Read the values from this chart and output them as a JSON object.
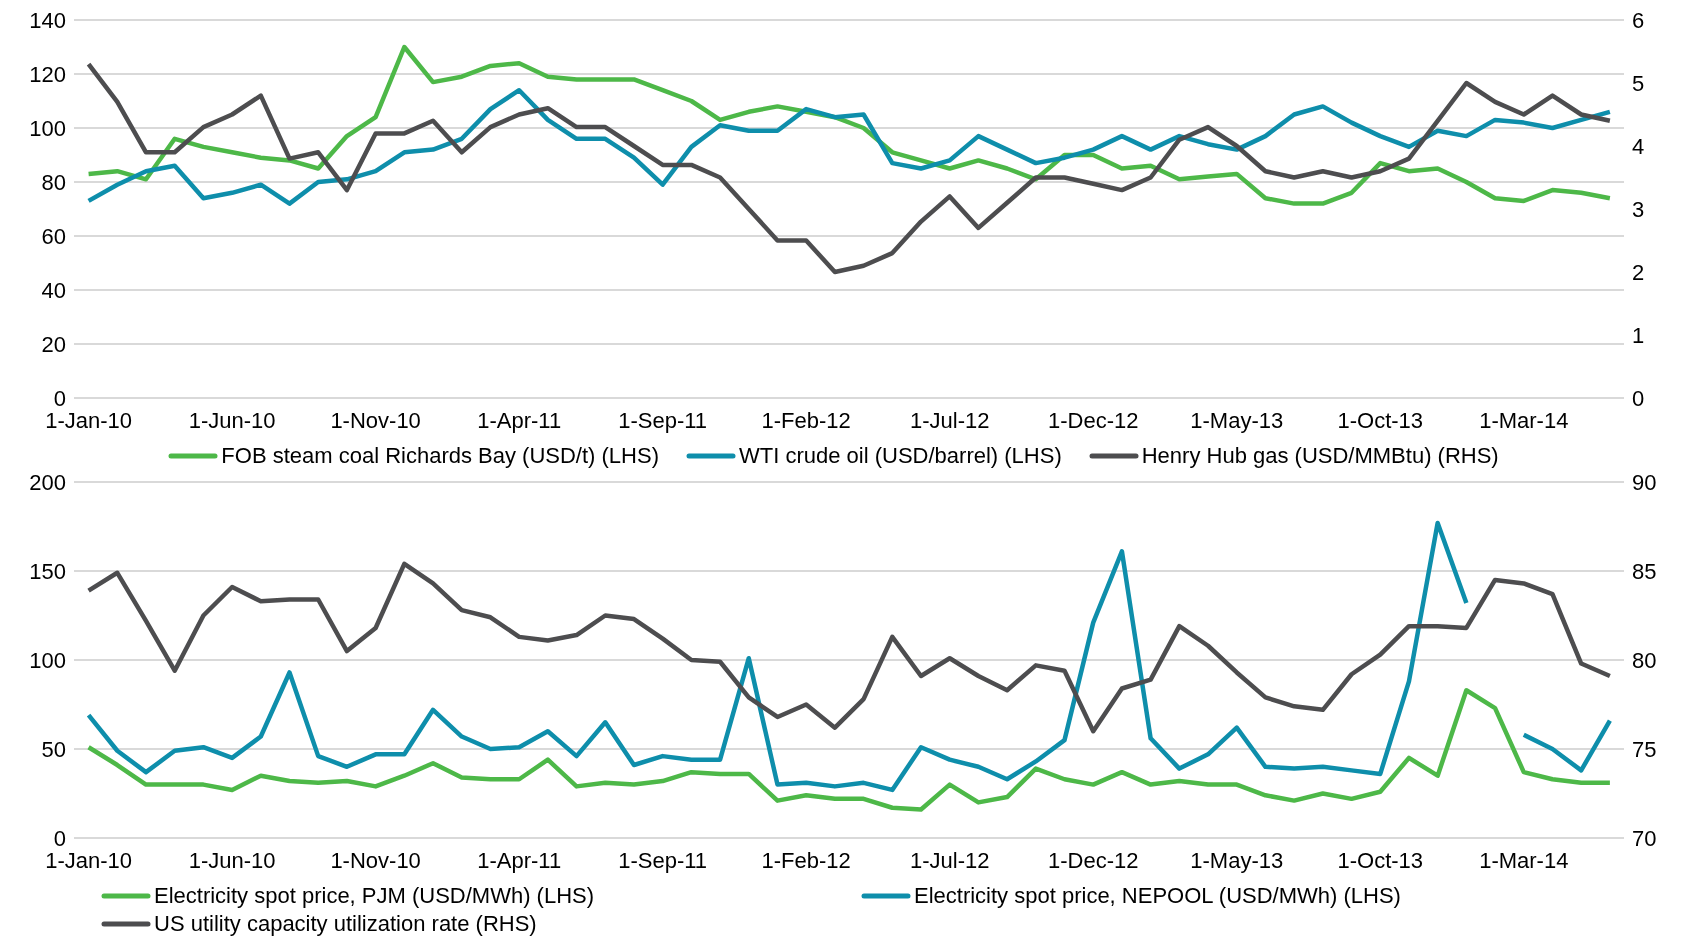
{
  "chart_data": [
    {
      "type": "line",
      "x": [
        "2010-01",
        "2010-02",
        "2010-03",
        "2010-04",
        "2010-05",
        "2010-06",
        "2010-07",
        "2010-08",
        "2010-09",
        "2010-10",
        "2010-11",
        "2010-12",
        "2011-01",
        "2011-02",
        "2011-03",
        "2011-04",
        "2011-05",
        "2011-06",
        "2011-07",
        "2011-08",
        "2011-09",
        "2011-10",
        "2011-11",
        "2011-12",
        "2012-01",
        "2012-02",
        "2012-03",
        "2012-04",
        "2012-05",
        "2012-06",
        "2012-07",
        "2012-08",
        "2012-09",
        "2012-10",
        "2012-11",
        "2012-12",
        "2013-01",
        "2013-02",
        "2013-03",
        "2013-04",
        "2013-05",
        "2013-06",
        "2013-07",
        "2013-08",
        "2013-09",
        "2013-10",
        "2013-11",
        "2013-12",
        "2014-01",
        "2014-02",
        "2014-03",
        "2014-04",
        "2014-05",
        "2014-06"
      ],
      "xlim": [
        "2009-12-16",
        "2014-06-16"
      ],
      "xticks": [
        {
          "value": "2010-01",
          "label": "1-Jan-10"
        },
        {
          "value": "2010-06",
          "label": "1-Jun-10"
        },
        {
          "value": "2010-11",
          "label": "1-Nov-10"
        },
        {
          "value": "2011-04",
          "label": "1-Apr-11"
        },
        {
          "value": "2011-09",
          "label": "1-Sep-11"
        },
        {
          "value": "2012-02",
          "label": "1-Feb-12"
        },
        {
          "value": "2012-07",
          "label": "1-Jul-12"
        },
        {
          "value": "2012-12",
          "label": "1-Dec-12"
        },
        {
          "value": "2013-05",
          "label": "1-May-13"
        },
        {
          "value": "2013-10",
          "label": "1-Oct-13"
        },
        {
          "value": "2014-03",
          "label": "1-Mar-14"
        }
      ],
      "ylim": [
        0,
        140
      ],
      "yticks": [
        0,
        20,
        40,
        60,
        80,
        100,
        120,
        140
      ],
      "y2lim": [
        0,
        6
      ],
      "y2ticks": [
        0,
        1,
        2,
        3,
        4,
        5,
        6
      ],
      "grid": "y",
      "legend": "bottom",
      "line_style": "solid",
      "marker": "none",
      "series": [
        {
          "name": "FOB steam coal Richards Bay (USD/t) (LHS)",
          "color": "#4db848",
          "values": [
            83,
            84,
            81,
            96,
            93,
            91,
            89,
            88,
            85,
            97,
            104,
            130,
            117,
            119,
            123,
            124,
            119,
            118,
            118,
            118,
            114,
            110,
            103,
            106,
            108,
            106,
            104,
            100,
            91,
            88,
            85,
            88,
            85,
            81,
            90,
            90,
            85,
            86,
            81,
            82,
            83,
            74,
            72,
            72,
            76,
            87,
            84,
            85,
            80,
            74,
            73,
            77,
            76,
            74
          ]
        },
        {
          "name": "WTI crude oil (USD/barrel) (LHS)",
          "color": "#0e8eab",
          "values": [
            73,
            79,
            84,
            86,
            74,
            76,
            79,
            72,
            80,
            81,
            84,
            91,
            92,
            96,
            107,
            114,
            103,
            96,
            96,
            89,
            79,
            93,
            101,
            99,
            99,
            107,
            104,
            105,
            87,
            85,
            88,
            97,
            92,
            87,
            89,
            92,
            97,
            92,
            97,
            94,
            92,
            97,
            105,
            108,
            102,
            97,
            93,
            99,
            97,
            103,
            102,
            100,
            103,
            106
          ]
        },
        {
          "name": "Henry Hub gas (USD/MMBtu) (RHS)",
          "color": "#4d4d4f",
          "axis": "y2",
          "values": [
            5.3,
            4.7,
            3.9,
            3.9,
            4.3,
            4.5,
            4.8,
            3.8,
            3.9,
            3.3,
            4.2,
            4.2,
            4.4,
            3.9,
            4.3,
            4.5,
            4.6,
            4.3,
            4.3,
            4.0,
            3.7,
            3.7,
            3.5,
            3.0,
            2.5,
            2.5,
            2.0,
            2.1,
            2.3,
            2.8,
            3.2,
            2.7,
            3.1,
            3.5,
            3.5,
            3.4,
            3.3,
            3.5,
            4.1,
            4.3,
            4.0,
            3.6,
            3.5,
            3.6,
            3.5,
            3.6,
            3.8,
            4.4,
            5.0,
            4.7,
            4.5,
            4.8,
            4.5,
            4.4
          ]
        }
      ]
    },
    {
      "type": "line",
      "x": [
        "2010-01",
        "2010-02",
        "2010-03",
        "2010-04",
        "2010-05",
        "2010-06",
        "2010-07",
        "2010-08",
        "2010-09",
        "2010-10",
        "2010-11",
        "2010-12",
        "2011-01",
        "2011-02",
        "2011-03",
        "2011-04",
        "2011-05",
        "2011-06",
        "2011-07",
        "2011-08",
        "2011-09",
        "2011-10",
        "2011-11",
        "2011-12",
        "2012-01",
        "2012-02",
        "2012-03",
        "2012-04",
        "2012-05",
        "2012-06",
        "2012-07",
        "2012-08",
        "2012-09",
        "2012-10",
        "2012-11",
        "2012-12",
        "2013-01",
        "2013-02",
        "2013-03",
        "2013-04",
        "2013-05",
        "2013-06",
        "2013-07",
        "2013-08",
        "2013-09",
        "2013-10",
        "2013-11",
        "2013-12",
        "2014-01",
        "2014-02",
        "2014-03",
        "2014-04",
        "2014-05",
        "2014-06"
      ],
      "xlim": [
        "2009-12-16",
        "2014-06-16"
      ],
      "xticks": [
        {
          "value": "2010-01",
          "label": "1-Jan-10"
        },
        {
          "value": "2010-06",
          "label": "1-Jun-10"
        },
        {
          "value": "2010-11",
          "label": "1-Nov-10"
        },
        {
          "value": "2011-04",
          "label": "1-Apr-11"
        },
        {
          "value": "2011-09",
          "label": "1-Sep-11"
        },
        {
          "value": "2012-02",
          "label": "1-Feb-12"
        },
        {
          "value": "2012-07",
          "label": "1-Jul-12"
        },
        {
          "value": "2012-12",
          "label": "1-Dec-12"
        },
        {
          "value": "2013-05",
          "label": "1-May-13"
        },
        {
          "value": "2013-10",
          "label": "1-Oct-13"
        },
        {
          "value": "2014-03",
          "label": "1-Mar-14"
        }
      ],
      "ylim": [
        0,
        200
      ],
      "yticks": [
        0,
        50,
        100,
        150,
        200
      ],
      "y2lim": [
        70,
        90
      ],
      "y2ticks": [
        70,
        75,
        80,
        85,
        90
      ],
      "grid": "y",
      "legend": "bottom",
      "line_style": "solid",
      "marker": "none",
      "series": [
        {
          "name": "Electricity spot price, PJM (USD/MWh) (LHS)",
          "color": "#4db848",
          "values": [
            51,
            41,
            30,
            30,
            30,
            27,
            35,
            32,
            31,
            32,
            29,
            35,
            42,
            34,
            33,
            33,
            44,
            29,
            31,
            30,
            32,
            37,
            36,
            36,
            21,
            24,
            22,
            22,
            17,
            16,
            30,
            20,
            23,
            39,
            33,
            30,
            37,
            30,
            32,
            30,
            30,
            24,
            21,
            25,
            22,
            26,
            45,
            35,
            83,
            73,
            37,
            33,
            31,
            31
          ]
        },
        {
          "name": "Electricity spot price, NEPOOL (USD/MWh) (LHS)",
          "color": "#0e8eab",
          "values": [
            69,
            49,
            37,
            49,
            51,
            45,
            57,
            93,
            46,
            40,
            47,
            47,
            72,
            57,
            50,
            51,
            60,
            46,
            65,
            41,
            46,
            44,
            44,
            101,
            30,
            31,
            29,
            31,
            27,
            51,
            44,
            40,
            33,
            43,
            55,
            121,
            161,
            56,
            39,
            47,
            62,
            40,
            39,
            40,
            38,
            36,
            88,
            177,
            132,
            null,
            58,
            50,
            38,
            66
          ]
        },
        {
          "name": "US utility capacity utilization rate (RHS)",
          "color": "#4d4d4f",
          "axis": "y2",
          "values": [
            83.9,
            84.9,
            82.2,
            79.4,
            82.5,
            84.1,
            83.3,
            83.4,
            83.4,
            80.5,
            81.8,
            85.4,
            84.3,
            82.8,
            82.4,
            81.3,
            81.1,
            81.4,
            82.5,
            82.3,
            81.2,
            80.0,
            79.9,
            77.9,
            76.8,
            77.5,
            76.2,
            77.8,
            81.3,
            79.1,
            80.1,
            79.1,
            78.3,
            79.7,
            79.4,
            76.0,
            78.4,
            78.9,
            81.9,
            80.8,
            79.3,
            77.9,
            77.4,
            77.2,
            79.2,
            80.3,
            81.9,
            81.9,
            81.8,
            84.5,
            84.3,
            83.7,
            79.8,
            79.1
          ]
        }
      ]
    }
  ]
}
